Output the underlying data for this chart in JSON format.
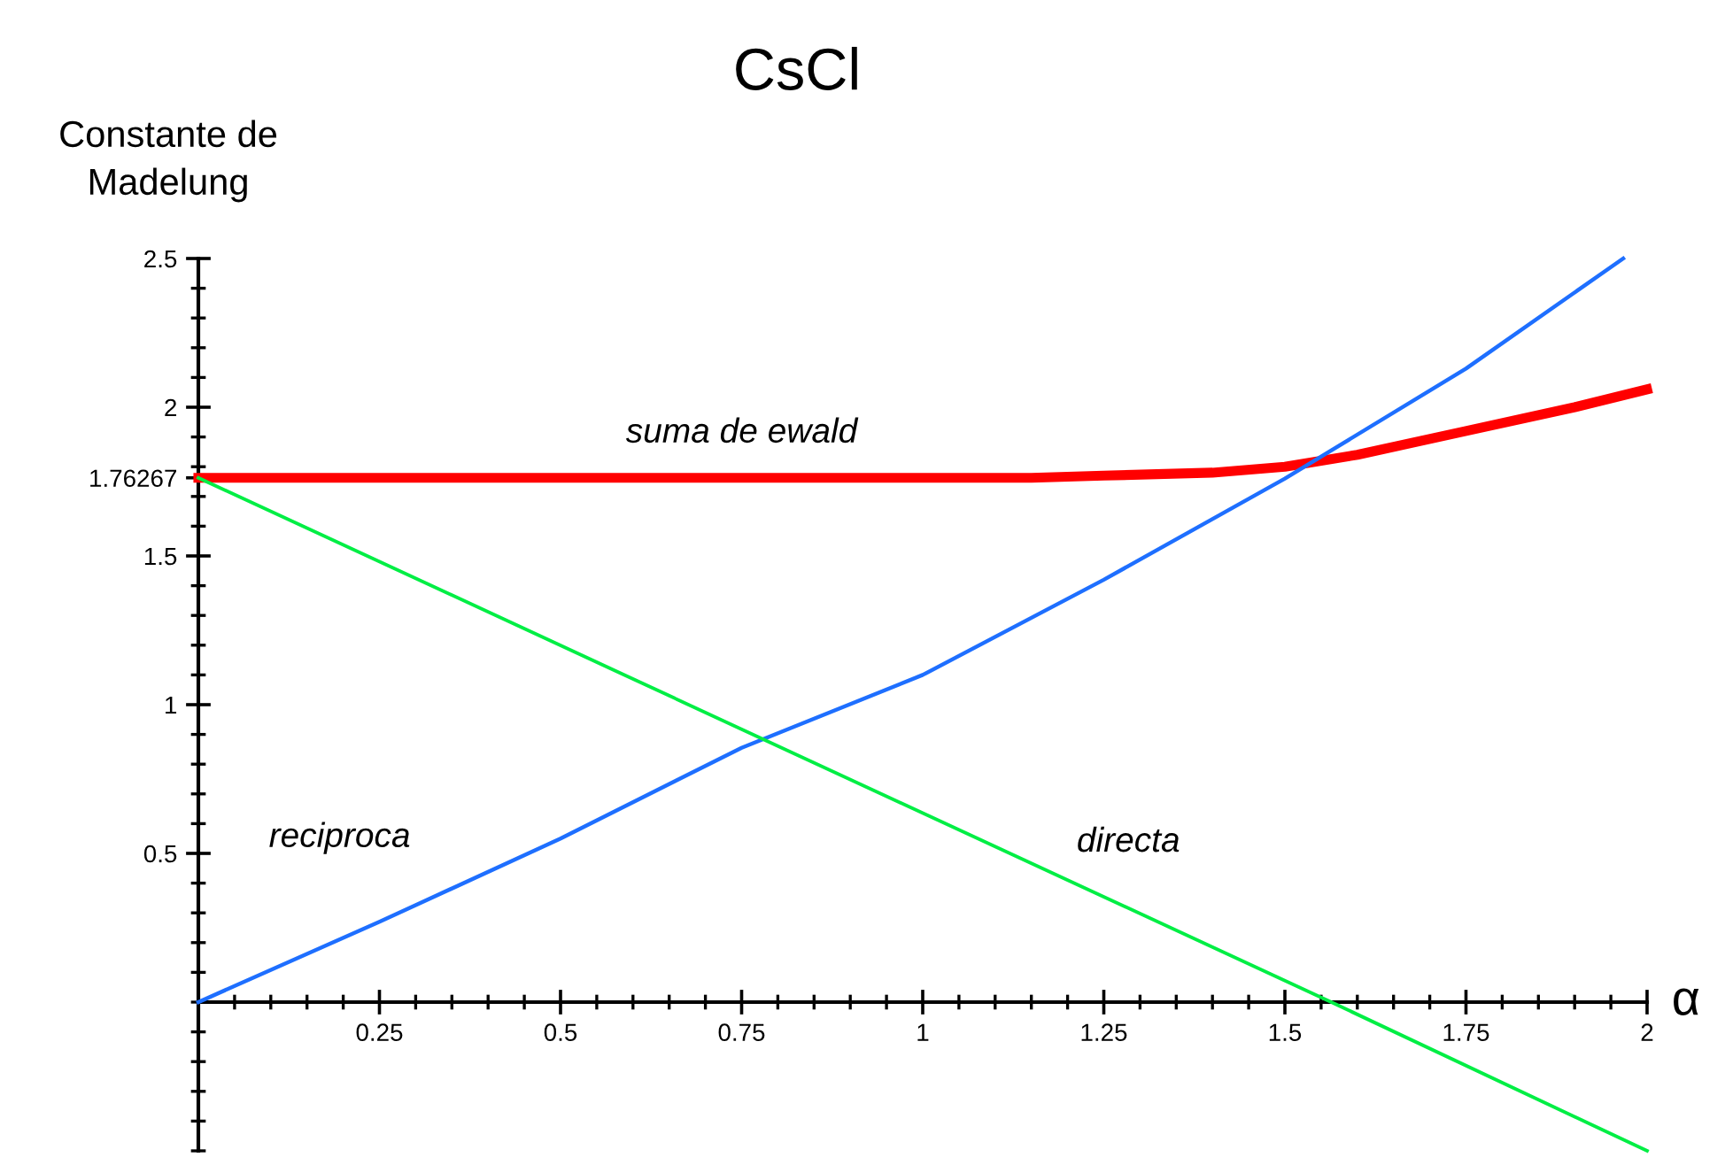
{
  "chart_data": {
    "type": "line",
    "title": "CsCl",
    "ylabel": "Constante de\nMadelung",
    "xlabel": "α",
    "xlim": [
      0,
      2
    ],
    "xticks": [
      0.25,
      0.5,
      0.75,
      1,
      1.25,
      1.5,
      1.75,
      2
    ],
    "ylim": [
      -0.5,
      2.5
    ],
    "yticks": [
      0.5,
      1,
      1.5,
      1.76267,
      2,
      2.5
    ],
    "grid": false,
    "legend": false,
    "marker": "none",
    "line_style": "solid",
    "series": [
      {
        "name": "suma de ewald",
        "color": "#ff0000",
        "x": [
          0,
          0.5,
          1,
          1.15,
          1.25,
          1.4,
          1.5,
          1.6,
          1.75,
          1.9,
          2
        ],
        "values": [
          1.76267,
          1.76267,
          1.76267,
          1.76267,
          1.77,
          1.78,
          1.8,
          1.84,
          1.92,
          2.0,
          2.06
        ]
      },
      {
        "name": "reciproca",
        "color": "#1e6fff",
        "x": [
          0,
          0.25,
          0.5,
          0.75,
          1,
          1.25,
          1.5,
          1.75,
          1.967
        ],
        "values": [
          0,
          0.27,
          0.55,
          0.855,
          1.1,
          1.42,
          1.76,
          2.13,
          2.5
        ]
      },
      {
        "name": "directa",
        "color": "#00ee44",
        "x": [
          0,
          1.564,
          2
        ],
        "values": [
          1.76267,
          0,
          -0.5
        ]
      }
    ]
  }
}
